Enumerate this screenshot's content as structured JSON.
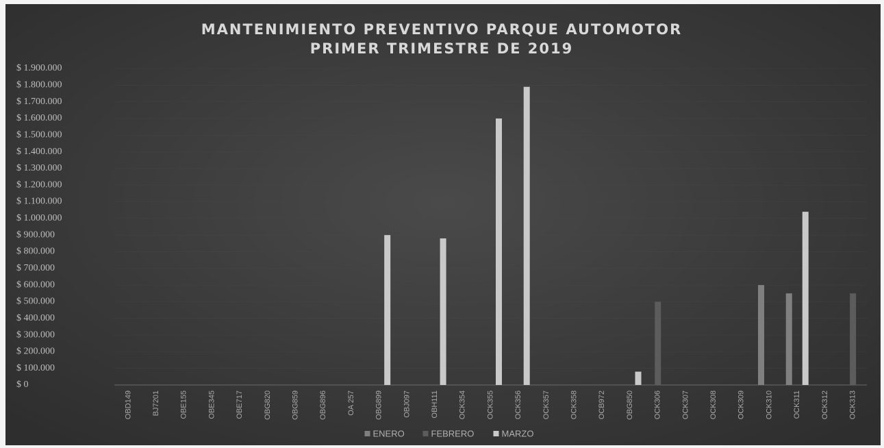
{
  "chart_data": {
    "type": "bar",
    "title": "MANTENIMIENTO PREVENTIVO PARQUE AUTOMOTOR",
    "subtitle": "PRIMER TRIMESTRE DE 2019",
    "categories": [
      "OBD149",
      "BJ7201",
      "OBE155",
      "OBE345",
      "OBE717",
      "OBG820",
      "OBG859",
      "OBG896",
      "OA 257",
      "OBG899",
      "OBJ097",
      "OBH111",
      "OCK354",
      "OCK355",
      "OCK356",
      "OCK357",
      "OCK358",
      "OCB972",
      "OBG850",
      "OCK306",
      "OCK307",
      "OCK308",
      "OCK309",
      "OCK310",
      "OCK311",
      "OCK312",
      "OCK313"
    ],
    "series": [
      {
        "name": "ENERO",
        "color": "#808080",
        "values": [
          0,
          0,
          0,
          0,
          0,
          0,
          0,
          0,
          0,
          0,
          0,
          0,
          0,
          0,
          0,
          0,
          0,
          0,
          0,
          0,
          0,
          0,
          0,
          600000,
          550000,
          0,
          0
        ]
      },
      {
        "name": "FEBRERO",
        "color": "#5c5c5c",
        "values": [
          0,
          0,
          0,
          0,
          0,
          0,
          0,
          0,
          0,
          0,
          0,
          0,
          0,
          0,
          0,
          0,
          0,
          0,
          0,
          500000,
          0,
          0,
          0,
          0,
          0,
          0,
          550000
        ]
      },
      {
        "name": "MARZO",
        "color": "#c9c9c9",
        "values": [
          0,
          0,
          0,
          0,
          0,
          0,
          0,
          0,
          0,
          900000,
          0,
          880000,
          0,
          1600000,
          1790000,
          0,
          0,
          0,
          80000,
          0,
          0,
          0,
          0,
          0,
          1040000,
          0,
          0
        ]
      }
    ],
    "ylim": [
      0,
      1900000
    ],
    "yticks": [
      {
        "value": 0,
        "label": "$ 0"
      },
      {
        "value": 100000,
        "label": "$ 100.000"
      },
      {
        "value": 200000,
        "label": "$ 200.000"
      },
      {
        "value": 300000,
        "label": "$ 300.000"
      },
      {
        "value": 400000,
        "label": "$ 400.000"
      },
      {
        "value": 500000,
        "label": "$ 500.000"
      },
      {
        "value": 600000,
        "label": "$ 600.000"
      },
      {
        "value": 700000,
        "label": "$ 700.000"
      },
      {
        "value": 800000,
        "label": "$ 800.000"
      },
      {
        "value": 900000,
        "label": "$ 900.000"
      },
      {
        "value": 1000000,
        "label": "$ 1.000.000"
      },
      {
        "value": 1100000,
        "label": "$ 1.100.000"
      },
      {
        "value": 1200000,
        "label": "$ 1.200.000"
      },
      {
        "value": 1300000,
        "label": "$ 1.300.000"
      },
      {
        "value": 1400000,
        "label": "$ 1.400.000"
      },
      {
        "value": 1500000,
        "label": "$ 1.500.000"
      },
      {
        "value": 1600000,
        "label": "$ 1.600.000"
      },
      {
        "value": 1700000,
        "label": "$ 1.700.000"
      },
      {
        "value": 1800000,
        "label": "$ 1.800.000"
      },
      {
        "value": 1900000,
        "label": "$ 1.900.000"
      }
    ],
    "grid": true,
    "legend": "bottom"
  }
}
